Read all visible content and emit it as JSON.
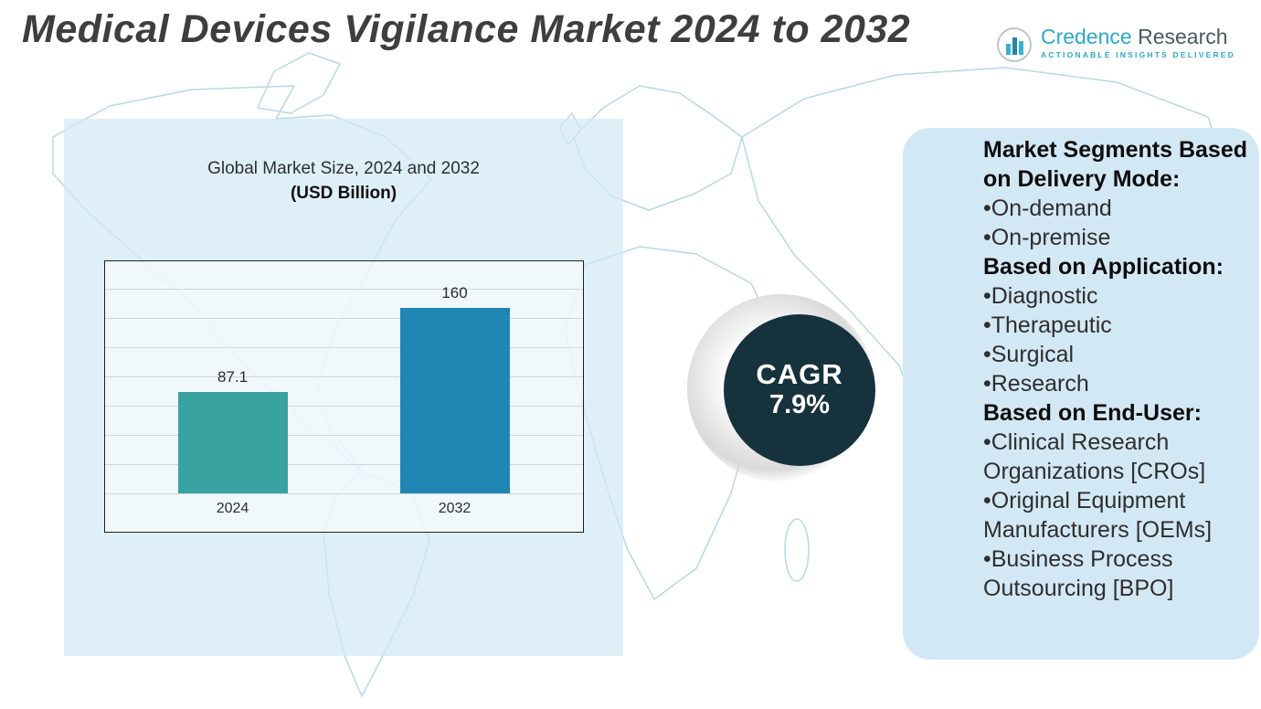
{
  "title": "Medical Devices Vigilance Market 2024 to 2032",
  "logo": {
    "brand_primary": "Credence",
    "brand_secondary": "Research",
    "tagline": "Actionable Insights Delivered"
  },
  "chart_panel": {
    "title_line1": "Global Market Size, 2024 and 2032",
    "title_line2": "(USD Billion)"
  },
  "chart_data": {
    "type": "bar",
    "title": "Global Market Size, 2024 and 2032 (USD Billion)",
    "categories": [
      "2024",
      "2032"
    ],
    "values": [
      87.1,
      160
    ],
    "value_labels": [
      "87.1",
      "160"
    ],
    "bar_colors": [
      "#3aa3a2",
      "#1f86b4"
    ],
    "ylabel": "USD Billion",
    "ylim": [
      0,
      200
    ],
    "grid": true,
    "legend": false
  },
  "cagr": {
    "label": "CAGR",
    "value": "7.9%",
    "circle_color": "#16323d"
  },
  "segments_panel": {
    "background_color": "#d3e8f5",
    "items": [
      {
        "type": "header",
        "text": "Market Segments Based on Delivery Mode:"
      },
      {
        "type": "bullet",
        "text": "On-demand"
      },
      {
        "type": "bullet",
        "text": "On-premise"
      },
      {
        "type": "header",
        "text": "Based on Application:"
      },
      {
        "type": "bullet",
        "text": "Diagnostic"
      },
      {
        "type": "bullet",
        "text": "Therapeutic"
      },
      {
        "type": "bullet",
        "text": "Surgical"
      },
      {
        "type": "bullet",
        "text": "Research"
      },
      {
        "type": "header",
        "text": "Based on End-User:"
      },
      {
        "type": "bullet",
        "text": "Clinical Research Organizations [CROs]"
      },
      {
        "type": "bullet",
        "text": "Original Equipment Manufacturers [OEMs]"
      },
      {
        "type": "bullet",
        "text": "Business Process Outsourcing [BPO]"
      }
    ]
  }
}
